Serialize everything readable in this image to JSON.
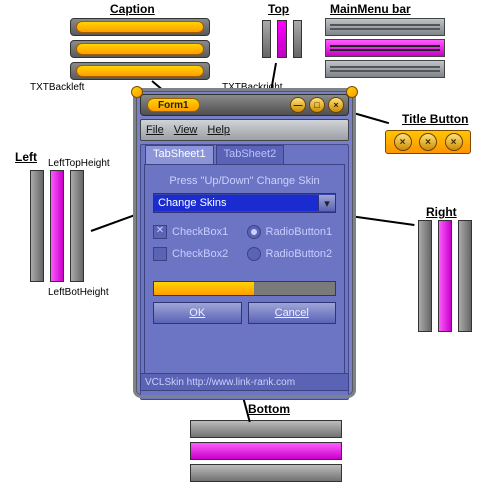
{
  "labels": {
    "caption": "Caption",
    "top": "Top",
    "mainmenu": "MainMenu bar",
    "titlebutton": "Title Button",
    "right": "Right",
    "left": "Left",
    "lefttop": "LeftTopHeight",
    "leftbot": "LeftBotHeight",
    "bottom": "Bottom",
    "txtbackleft": "TXTBackleft",
    "txtbackright": "TXTBackright"
  },
  "titlebar": {
    "title": "Form1",
    "min": "—",
    "max": "□",
    "close": "×"
  },
  "menu": {
    "file": "File",
    "view": "View",
    "help": "Help"
  },
  "tabs": {
    "t1": "TabSheet1",
    "t2": "TabSheet2"
  },
  "content": {
    "instruction": "Press \"Up/Down\" Change Skin",
    "combo_value": "Change Skins",
    "cb1": "CheckBox1",
    "cb2": "CheckBox2",
    "rb1": "RadioButton1",
    "rb2": "RadioButton2",
    "ok": "OK",
    "cancel": "Cancel",
    "status": "VCLSkin http://www.link-rank.com"
  },
  "progress": {
    "percent": 55
  },
  "colors": {
    "accent": "#ffb400",
    "magenta": "#ff00ff",
    "client": "#6c75c4"
  }
}
